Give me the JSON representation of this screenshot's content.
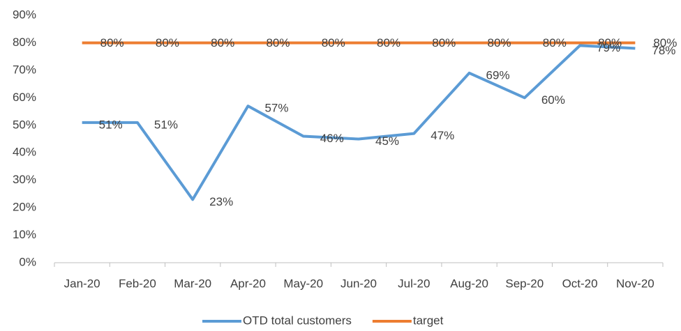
{
  "chart_data": {
    "type": "line",
    "categories": [
      "Jan-20",
      "Feb-20",
      "Mar-20",
      "Apr-20",
      "May-20",
      "Jun-20",
      "Jul-20",
      "Aug-20",
      "Sep-20",
      "Oct-20",
      "Nov-20"
    ],
    "series": [
      {
        "name": "OTD total customers",
        "color": "#5b9bd5",
        "values": [
          51,
          51,
          23,
          57,
          46,
          45,
          47,
          69,
          60,
          79,
          78
        ],
        "value_labels": [
          "51%",
          "51%",
          "23%",
          "57%",
          "46%",
          "45%",
          "47%",
          "69%",
          "60%",
          "79%",
          "78%"
        ]
      },
      {
        "name": "target",
        "color": "#ed7d31",
        "values": [
          80,
          80,
          80,
          80,
          80,
          80,
          80,
          80,
          80,
          80,
          80
        ],
        "value_labels": [
          "80%",
          "80%",
          "80%",
          "80%",
          "80%",
          "80%",
          "80%",
          "80%",
          "80%",
          "80%",
          "80%"
        ]
      }
    ],
    "ylim": [
      0,
      90
    ],
    "yticks": [
      {
        "value": 0,
        "label": "0%"
      },
      {
        "value": 10,
        "label": "10%"
      },
      {
        "value": 20,
        "label": "20%"
      },
      {
        "value": 30,
        "label": "30%"
      },
      {
        "value": 40,
        "label": "40%"
      },
      {
        "value": 50,
        "label": "50%"
      },
      {
        "value": 60,
        "label": "60%"
      },
      {
        "value": 70,
        "label": "70%"
      },
      {
        "value": 80,
        "label": "80%"
      },
      {
        "value": 90,
        "label": "90%"
      }
    ],
    "grid": false,
    "legend": "bottom"
  }
}
